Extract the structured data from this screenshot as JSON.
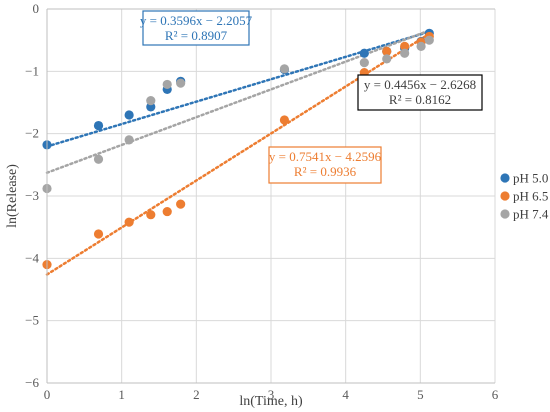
{
  "chart_data": {
    "type": "scatter",
    "xlabel": "ln(Time, h)",
    "ylabel": "ln(Release)",
    "xlim": [
      0,
      6
    ],
    "ylim": [
      -6,
      0
    ],
    "xticks": [
      "0",
      "1",
      "2",
      "3",
      "4",
      "5",
      "6"
    ],
    "yticks": [
      "0",
      "−1",
      "−2",
      "−3",
      "−4",
      "−5",
      "−6"
    ],
    "grid": true,
    "legend_position": "right",
    "series": [
      {
        "name": "pH 5.0",
        "color": "#2E75B6",
        "x": [
          0,
          0.69,
          1.1,
          1.39,
          1.61,
          1.79,
          3.18,
          4.25,
          4.55,
          4.79,
          5.01,
          5.12
        ],
        "y": [
          -2.18,
          -1.87,
          -1.7,
          -1.57,
          -1.29,
          -1.16,
          -0.97,
          -0.71,
          -0.68,
          -0.63,
          -0.52,
          -0.39
        ],
        "trendline": {
          "slope": 0.3596,
          "intercept": -2.2057,
          "equation": "y = 0.3596x − 2.2057",
          "r2": "R² = 0.8907"
        }
      },
      {
        "name": "pH 6.5",
        "color": "#ED7D31",
        "x": [
          0,
          0.69,
          1.1,
          1.39,
          1.61,
          1.79,
          3.18,
          4.25,
          4.55,
          4.79,
          5.01,
          5.12
        ],
        "y": [
          -4.1,
          -3.61,
          -3.42,
          -3.3,
          -3.25,
          -3.13,
          -1.78,
          -1.02,
          -0.68,
          -0.6,
          -0.53,
          -0.44
        ],
        "trendline": {
          "slope": 0.7541,
          "intercept": -4.2596,
          "equation": "y = 0.7541x − 4.2596",
          "r2": "R² = 0.9936"
        }
      },
      {
        "name": "pH 7.4",
        "color": "#A5A5A5",
        "x": [
          0,
          0.69,
          1.1,
          1.39,
          1.61,
          1.79,
          3.18,
          4.25,
          4.55,
          4.79,
          5.01,
          5.12
        ],
        "y": [
          -2.88,
          -2.41,
          -2.1,
          -1.47,
          -1.21,
          -1.19,
          -0.96,
          -0.86,
          -0.8,
          -0.71,
          -0.6,
          -0.5
        ],
        "trendline": {
          "slope": 0.4456,
          "intercept": -2.6268,
          "equation": "y = 0.4456x − 2.6268",
          "r2": "R² = 0.8162"
        }
      }
    ],
    "annotations": [
      {
        "series": 0,
        "box_color": "#2E75B6",
        "text_color": "#2E75B6"
      },
      {
        "series": 2,
        "box_color": "#000000",
        "text_color": "#404040"
      },
      {
        "series": 1,
        "box_color": "#ED7D31",
        "text_color": "#ED7D31"
      }
    ]
  }
}
